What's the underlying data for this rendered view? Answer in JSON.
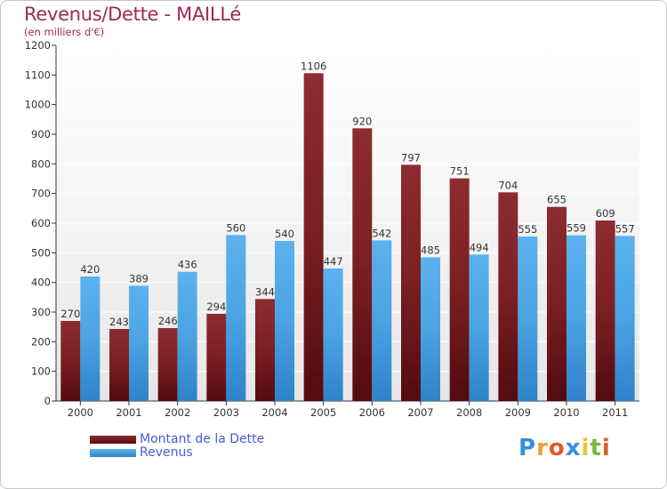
{
  "chart_data": {
    "type": "bar",
    "title": "Revenus/Dette - MAILLé",
    "subtitle": "(en milliers d'€)",
    "categories": [
      "2000",
      "2001",
      "2002",
      "2003",
      "2004",
      "2005",
      "2006",
      "2007",
      "2008",
      "2009",
      "2010",
      "2011"
    ],
    "series": [
      {
        "name": "Montant de la Dette",
        "color": "#7a1f22",
        "values": [
          270,
          243,
          246,
          294,
          344,
          1106,
          920,
          797,
          751,
          704,
          655,
          609
        ]
      },
      {
        "name": "Revenus",
        "color": "#4ba3e3",
        "values": [
          420,
          389,
          436,
          560,
          540,
          447,
          542,
          485,
          494,
          555,
          559,
          557
        ]
      }
    ],
    "ylim": [
      0,
      1200
    ],
    "yticks": [
      0,
      100,
      200,
      300,
      400,
      500,
      600,
      700,
      800,
      900,
      1000,
      1100,
      1200
    ],
    "grid": true,
    "legend_position": "bottom-left"
  },
  "logo": {
    "letters": [
      "P",
      "r",
      "o",
      "x",
      "i",
      "t",
      "i"
    ],
    "colors": [
      "#3a8fd8",
      "#e8a23a",
      "#e05a2a",
      "#3a8fd8",
      "#e8c23a",
      "#7ab83a",
      "#e05a2a"
    ]
  }
}
